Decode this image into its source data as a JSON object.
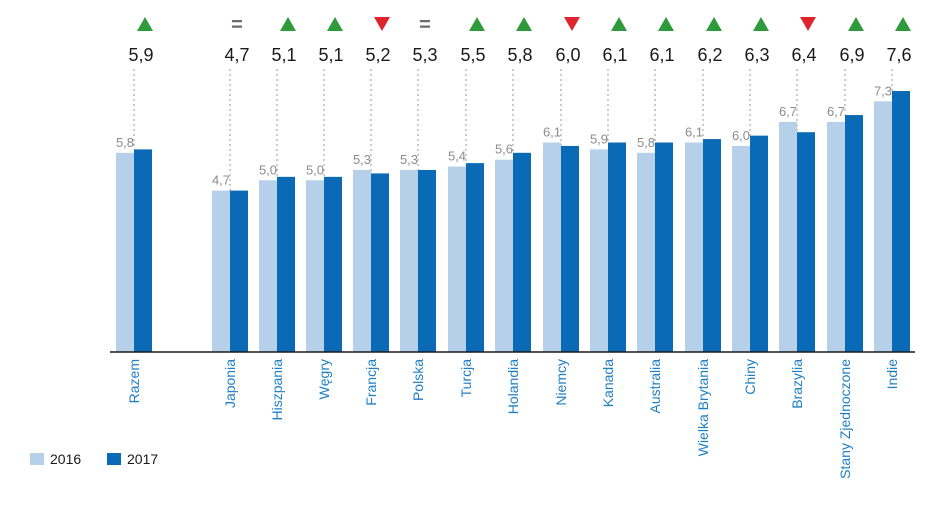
{
  "colors": {
    "series_2016": "#b7d0ea",
    "series_2017": "#0b6ab5",
    "up": "#2e9a3b",
    "down": "#e0242e",
    "equal": "#6d6d6d",
    "label": "#1f7fc4"
  },
  "chart_data": {
    "type": "bar",
    "categories": [
      "Razem",
      "Japonia",
      "Hiszpania",
      "Węgry",
      "Francja",
      "Polska",
      "Turcja",
      "Holandia",
      "Niemcy",
      "Kanada",
      "Australia",
      "Wielka Brytania",
      "Chiny",
      "Brazylia",
      "Stany Zjednoczone",
      "Indie"
    ],
    "value_labels_2016": [
      "5,8",
      "4,7",
      "5,0",
      "5,0",
      "5,3",
      "5,3",
      "5,4",
      "5,6",
      "6,1",
      "5,9",
      "5,8",
      "6,1",
      "6,0",
      "6,7",
      "6,7",
      "7,3"
    ],
    "value_labels_2017": [
      "5,9",
      "4,7",
      "5,1",
      "5,1",
      "5,2",
      "5,3",
      "5,5",
      "5,8",
      "6,0",
      "6,1",
      "6,1",
      "6,2",
      "6,3",
      "6,4",
      "6,9",
      "7,6"
    ],
    "series": [
      {
        "name": "2016",
        "values": [
          5.8,
          4.7,
          5.0,
          5.0,
          5.3,
          5.3,
          5.4,
          5.6,
          6.1,
          5.9,
          5.8,
          6.1,
          6.0,
          6.7,
          6.7,
          7.3
        ]
      },
      {
        "name": "2017",
        "values": [
          5.9,
          4.7,
          5.1,
          5.1,
          5.2,
          5.3,
          5.5,
          5.8,
          6.0,
          6.1,
          6.1,
          6.2,
          6.3,
          6.4,
          6.9,
          7.6
        ]
      }
    ],
    "trend": [
      "up",
      "equal",
      "up",
      "up",
      "down",
      "equal",
      "up",
      "up",
      "down",
      "up",
      "up",
      "up",
      "up",
      "down",
      "up",
      "up"
    ],
    "equal_symbol": "=",
    "ylim": [
      0,
      7.6
    ],
    "grid": false,
    "legend": {
      "placement": "bottom-left",
      "entries": [
        "2016",
        "2017"
      ]
    }
  }
}
